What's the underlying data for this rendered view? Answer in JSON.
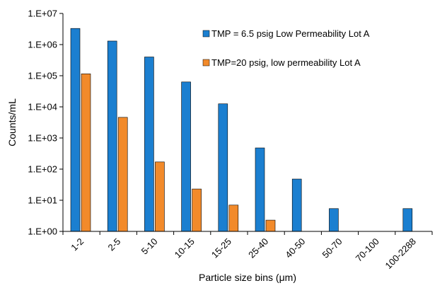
{
  "chart_data": {
    "type": "bar",
    "title": "",
    "xlabel": "Particle size bins (μm)",
    "ylabel": "Counts/mL",
    "yscale": "log",
    "ylim": [
      1,
      10000000
    ],
    "ytick_values": [
      1,
      10,
      100,
      1000,
      10000,
      100000,
      1000000,
      10000000
    ],
    "ytick_labels": [
      "1.E+00",
      "1.E+01",
      "1.E+02",
      "1.E+03",
      "1.E+04",
      "1.E+05",
      "1.E+06",
      "1.E+07"
    ],
    "categories": [
      "1-2",
      "2-5",
      "5-10",
      "10-15",
      "15-25",
      "25-40",
      "40-50",
      "50-70",
      "70-100",
      "100-2288"
    ],
    "series": [
      {
        "name": "TMP = 6.5 psig Low Permeability Lot A",
        "color": "#1b7fd0",
        "values": [
          3300000,
          1300000,
          400000,
          63000,
          12500,
          480,
          48,
          5.4,
          null,
          5.4
        ]
      },
      {
        "name": "TMP=20 psig, low permeability Lot A",
        "color": "#f28a2a",
        "values": [
          115000,
          4600,
          170,
          23,
          7,
          2.3,
          null,
          null,
          null,
          null
        ]
      }
    ],
    "legend_position": "top-right",
    "grid": false
  }
}
